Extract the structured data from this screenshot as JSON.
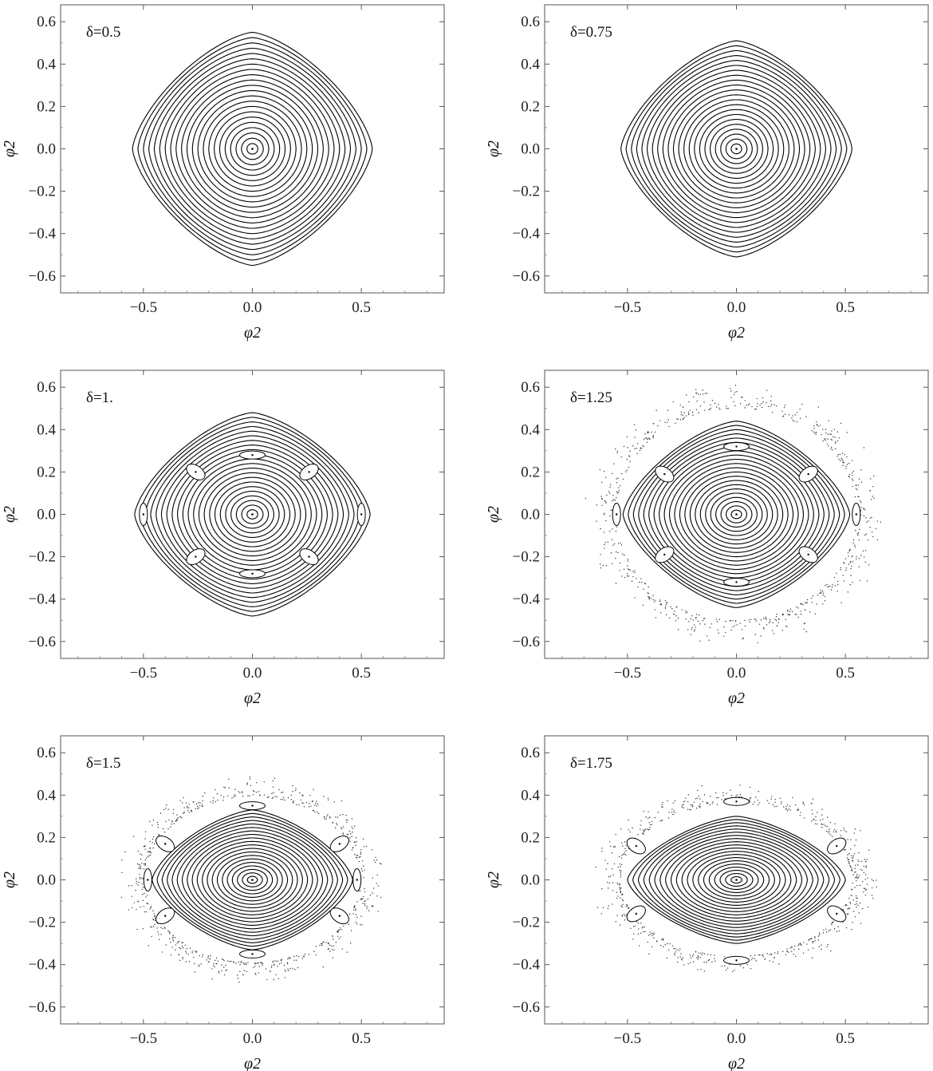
{
  "chart_data": [
    {
      "type": "scatter",
      "annotation": "δ=0.5",
      "xlabel": "φ2",
      "ylabel": "φ̇2",
      "xlim": [
        -0.88,
        0.88
      ],
      "ylim": [
        -0.68,
        0.68
      ],
      "xticks": [
        -0.5,
        0.0,
        0.5
      ],
      "xtick_labels": [
        "−0.5",
        "0.0",
        "0.5"
      ],
      "yticks": [
        -0.6,
        -0.4,
        -0.2,
        0.0,
        0.2,
        0.4,
        0.6
      ],
      "ytick_labels": [
        "−0.6",
        "−0.4",
        "−0.2",
        "0.0",
        "0.2",
        "0.4",
        "0.6"
      ],
      "grid": false,
      "orbits": {
        "count": 22,
        "outer_amplitude_x": 0.55,
        "outer_amplitude_y": 0.55
      },
      "islands": [],
      "chaotic_sea": false
    },
    {
      "type": "scatter",
      "annotation": "δ=0.75",
      "xlabel": "φ2",
      "ylabel": "φ̇2",
      "xlim": [
        -0.88,
        0.88
      ],
      "ylim": [
        -0.68,
        0.68
      ],
      "xticks": [
        -0.5,
        0.0,
        0.5
      ],
      "xtick_labels": [
        "−0.5",
        "0.0",
        "0.5"
      ],
      "yticks": [
        -0.6,
        -0.4,
        -0.2,
        0.0,
        0.2,
        0.4,
        0.6
      ],
      "ytick_labels": [
        "−0.6",
        "−0.4",
        "−0.2",
        "0.0",
        "0.2",
        "0.4",
        "0.6"
      ],
      "grid": false,
      "orbits": {
        "count": 22,
        "outer_amplitude_x": 0.53,
        "outer_amplitude_y": 0.51
      },
      "islands": [],
      "chaotic_sea": false
    },
    {
      "type": "scatter",
      "annotation": "δ=1.",
      "xlabel": "φ2",
      "ylabel": "φ̇2",
      "xlim": [
        -0.88,
        0.88
      ],
      "ylim": [
        -0.68,
        0.68
      ],
      "xticks": [
        -0.5,
        0.0,
        0.5
      ],
      "xtick_labels": [
        "−0.5",
        "0.0",
        "0.5"
      ],
      "yticks": [
        -0.6,
        -0.4,
        -0.2,
        0.0,
        0.2,
        0.4,
        0.6
      ],
      "ytick_labels": [
        "−0.6",
        "−0.4",
        "−0.2",
        "0.0",
        "0.2",
        "0.4",
        "0.6"
      ],
      "grid": false,
      "orbits": {
        "count": 22,
        "outer_amplitude_x": 0.54,
        "outer_amplitude_y": 0.48
      },
      "islands": [
        {
          "x": 0.0,
          "y": 0.28
        },
        {
          "x": 0.0,
          "y": -0.28
        },
        {
          "x": -0.5,
          "y": 0.0
        },
        {
          "x": 0.5,
          "y": 0.0
        },
        {
          "x": -0.26,
          "y": 0.2
        },
        {
          "x": 0.26,
          "y": 0.2
        },
        {
          "x": -0.26,
          "y": -0.2
        },
        {
          "x": 0.26,
          "y": -0.2
        }
      ],
      "chaotic_sea": false
    },
    {
      "type": "scatter",
      "annotation": "δ=1.25",
      "xlabel": "φ2",
      "ylabel": "φ̇2",
      "xlim": [
        -0.88,
        0.88
      ],
      "ylim": [
        -0.68,
        0.68
      ],
      "xticks": [
        -0.5,
        0.0,
        0.5
      ],
      "xtick_labels": [
        "−0.5",
        "0.0",
        "0.5"
      ],
      "yticks": [
        -0.6,
        -0.4,
        -0.2,
        0.0,
        0.2,
        0.4,
        0.6
      ],
      "ytick_labels": [
        "−0.6",
        "−0.4",
        "−0.2",
        "0.0",
        "0.2",
        "0.4",
        "0.6"
      ],
      "grid": false,
      "orbits": {
        "count": 22,
        "outer_amplitude_x": 0.52,
        "outer_amplitude_y": 0.44
      },
      "islands": [
        {
          "x": 0.0,
          "y": 0.32
        },
        {
          "x": 0.0,
          "y": -0.32
        },
        {
          "x": -0.55,
          "y": 0.0
        },
        {
          "x": 0.55,
          "y": 0.0
        },
        {
          "x": -0.33,
          "y": 0.19
        },
        {
          "x": 0.33,
          "y": 0.19
        },
        {
          "x": -0.33,
          "y": -0.19
        },
        {
          "x": 0.33,
          "y": -0.19
        }
      ],
      "chaotic_sea": true
    },
    {
      "type": "scatter",
      "annotation": "δ=1.5",
      "xlabel": "φ2",
      "ylabel": "φ̇2",
      "xlim": [
        -0.88,
        0.88
      ],
      "ylim": [
        -0.68,
        0.68
      ],
      "xticks": [
        -0.5,
        0.0,
        0.5
      ],
      "xtick_labels": [
        "−0.5",
        "0.0",
        "0.5"
      ],
      "yticks": [
        -0.6,
        -0.4,
        -0.2,
        0.0,
        0.2,
        0.4,
        0.6
      ],
      "ytick_labels": [
        "−0.6",
        "−0.4",
        "−0.2",
        "0.0",
        "0.2",
        "0.4",
        "0.6"
      ],
      "grid": false,
      "orbits": {
        "count": 20,
        "outer_amplitude_x": 0.46,
        "outer_amplitude_y": 0.33
      },
      "islands": [
        {
          "x": 0.0,
          "y": 0.35
        },
        {
          "x": 0.0,
          "y": -0.35
        },
        {
          "x": -0.48,
          "y": 0.0
        },
        {
          "x": 0.48,
          "y": 0.0
        },
        {
          "x": -0.4,
          "y": 0.17
        },
        {
          "x": 0.4,
          "y": 0.17
        },
        {
          "x": -0.4,
          "y": -0.17
        },
        {
          "x": 0.4,
          "y": -0.17
        }
      ],
      "chaotic_sea": true
    },
    {
      "type": "scatter",
      "annotation": "δ=1.75",
      "xlabel": "φ2",
      "ylabel": "φ̇2",
      "xlim": [
        -0.88,
        0.88
      ],
      "ylim": [
        -0.68,
        0.68
      ],
      "xticks": [
        -0.5,
        0.0,
        0.5
      ],
      "xtick_labels": [
        "−0.5",
        "0.0",
        "0.5"
      ],
      "yticks": [
        -0.6,
        -0.4,
        -0.2,
        0.0,
        0.2,
        0.4,
        0.6
      ],
      "ytick_labels": [
        "−0.6",
        "−0.4",
        "−0.2",
        "0.0",
        "0.2",
        "0.4",
        "0.6"
      ],
      "grid": false,
      "orbits": {
        "count": 20,
        "outer_amplitude_x": 0.5,
        "outer_amplitude_y": 0.3
      },
      "islands": [
        {
          "x": 0.0,
          "y": 0.37
        },
        {
          "x": 0.0,
          "y": -0.38
        },
        {
          "x": -0.46,
          "y": 0.16
        },
        {
          "x": 0.46,
          "y": 0.16
        },
        {
          "x": -0.46,
          "y": -0.16
        },
        {
          "x": 0.46,
          "y": -0.16
        }
      ],
      "chaotic_sea": true
    }
  ]
}
